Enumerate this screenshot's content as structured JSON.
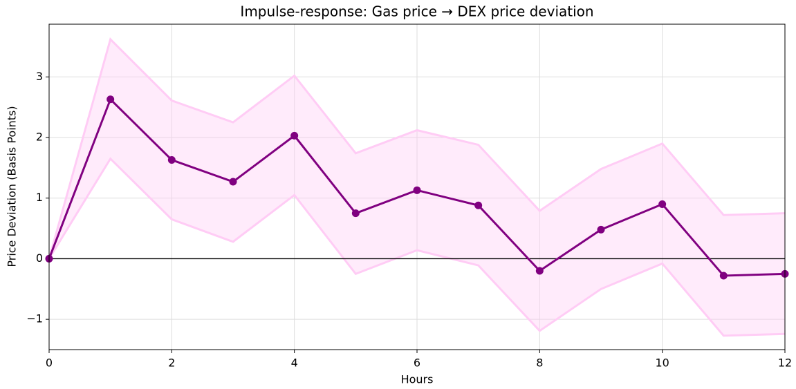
{
  "chart_data": {
    "type": "line",
    "title": "Impulse-response: Gas price → DEX price deviation",
    "xlabel": "Hours",
    "ylabel": "Price Deviation (Basis Points)",
    "x": [
      0,
      1,
      2,
      3,
      4,
      5,
      6,
      7,
      8,
      9,
      10,
      11,
      12
    ],
    "values": [
      0,
      2.63,
      1.63,
      1.27,
      2.03,
      0.75,
      1.13,
      0.88,
      -0.2,
      0.48,
      0.9,
      -0.28,
      -0.25
    ],
    "upper": [
      0,
      3.62,
      2.61,
      2.25,
      3.02,
      1.74,
      2.12,
      1.88,
      0.79,
      1.48,
      1.9,
      0.72,
      0.75
    ],
    "lower": [
      0,
      1.65,
      0.65,
      0.28,
      1.05,
      -0.25,
      0.14,
      -0.11,
      -1.19,
      -0.5,
      -0.08,
      -1.27,
      -1.24
    ],
    "color": "#800080",
    "band_color": "#ffccf5",
    "xlim": [
      0,
      12
    ],
    "xticks": [
      0,
      2,
      4,
      6,
      8,
      10,
      12
    ],
    "ylim": [
      -1.5,
      3.87
    ],
    "yticks": [
      {
        "value": -1,
        "label": "−1"
      },
      0,
      1,
      2,
      3
    ],
    "hline": 0,
    "grid": true
  }
}
